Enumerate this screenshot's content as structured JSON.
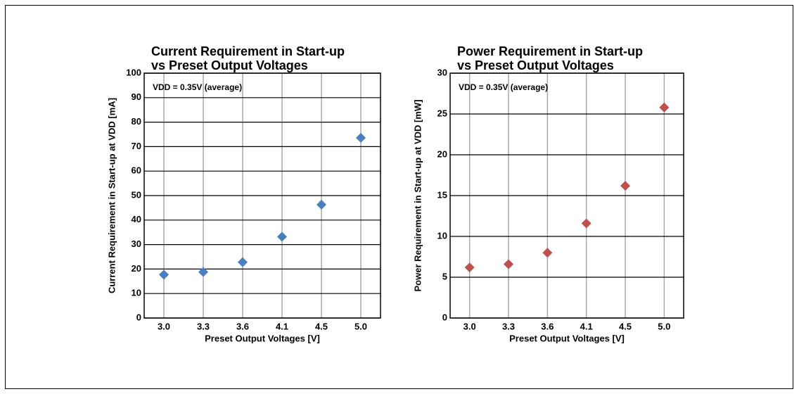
{
  "chart_data": [
    {
      "type": "scatter",
      "title": [
        "Current Requirement in Start-up",
        "vs Preset Output Voltages"
      ],
      "annotation": "VDD = 0.35V (average)",
      "x_label": "Preset Output Voltages [V]",
      "y_label": "Current Requirement in Start-up at VDD [mA]",
      "categories": [
        "3.0",
        "3.3",
        "3.6",
        "4.1",
        "4.5",
        "5.0"
      ],
      "values": [
        17.7,
        18.8,
        22.8,
        33.2,
        46.3,
        73.6
      ],
      "color": "#4a7fc1",
      "ylim": [
        0,
        100
      ],
      "yticks": [
        0,
        10,
        20,
        30,
        40,
        50,
        60,
        70,
        80,
        90,
        100
      ],
      "grid": true
    },
    {
      "type": "scatter",
      "title": [
        "Power Requirement in Start-up",
        "vs Preset Output Voltages"
      ],
      "annotation": "VDD = 0.35V (average)",
      "x_label": "Preset Output Voltages [V]",
      "y_label": "Power Requirement in Start-up at VDD [mW]",
      "categories": [
        "3.0",
        "3.3",
        "3.6",
        "4.1",
        "4.5",
        "5.0"
      ],
      "values": [
        6.2,
        6.6,
        8.0,
        11.6,
        16.2,
        25.8
      ],
      "color": "#c0504d",
      "ylim": [
        0,
        30
      ],
      "yticks": [
        0,
        5,
        10,
        15,
        20,
        25,
        30
      ],
      "grid": true
    }
  ]
}
